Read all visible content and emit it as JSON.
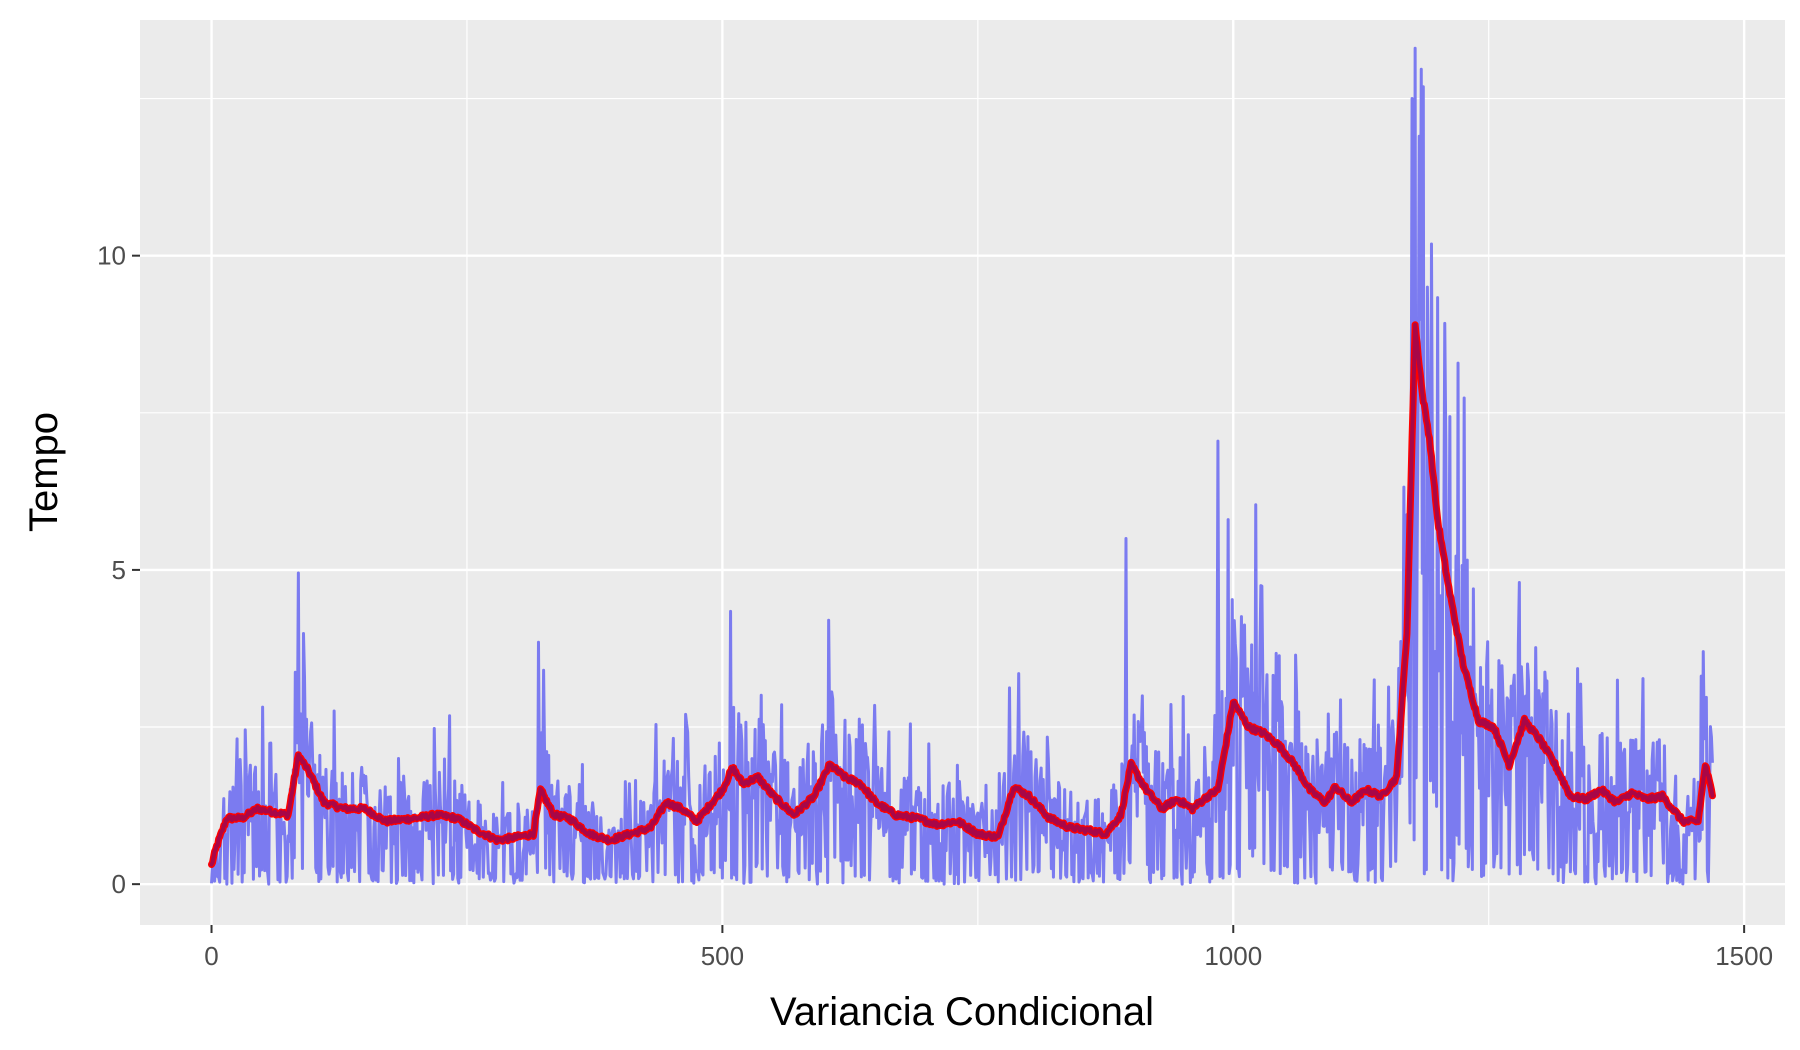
{
  "chart_data": {
    "type": "line",
    "xlabel": "Variancia Condicional",
    "ylabel": "Tempo",
    "xlim": [
      -70,
      1540
    ],
    "ylim": [
      -0.65,
      13.75
    ],
    "x_ticks": [
      {
        "value": 0,
        "label": "0"
      },
      {
        "value": 500,
        "label": "500"
      },
      {
        "value": 1000,
        "label": "1000"
      },
      {
        "value": 1500,
        "label": "1500"
      }
    ],
    "y_ticks": [
      {
        "value": 0,
        "label": "0"
      },
      {
        "value": 5,
        "label": "5"
      },
      {
        "value": 10,
        "label": "10"
      }
    ],
    "grid": true,
    "background": "#ebebeb",
    "n_points": 1470,
    "series": [
      {
        "kind": "raw",
        "color": "#7b7bf0",
        "peaks": [
          [
            85,
            4.95
          ],
          [
            320,
            3.85
          ],
          [
            604,
            4.2
          ],
          [
            790,
            3.35
          ],
          [
            895,
            5.5
          ],
          [
            985,
            7.05
          ],
          [
            995,
            5.8
          ],
          [
            1175,
            12.5
          ],
          [
            1178,
            13.3
          ],
          [
            1182,
            11.9
          ],
          [
            1190,
            9.5
          ],
          [
            1280,
            4.8
          ],
          [
            1460,
            3.7
          ]
        ]
      },
      {
        "kind": "smoothed",
        "color": "#ff0000",
        "overlay_color": "#8b0a60",
        "keypoints": [
          [
            0,
            0.3
          ],
          [
            5,
            0.6
          ],
          [
            15,
            1.05
          ],
          [
            30,
            1.05
          ],
          [
            45,
            1.2
          ],
          [
            60,
            1.15
          ],
          [
            75,
            1.1
          ],
          [
            85,
            2.05
          ],
          [
            95,
            1.8
          ],
          [
            110,
            1.3
          ],
          [
            130,
            1.2
          ],
          [
            150,
            1.2
          ],
          [
            170,
            1.0
          ],
          [
            200,
            1.05
          ],
          [
            220,
            1.1
          ],
          [
            240,
            1.05
          ],
          [
            260,
            0.85
          ],
          [
            280,
            0.7
          ],
          [
            300,
            0.75
          ],
          [
            315,
            0.8
          ],
          [
            322,
            1.5
          ],
          [
            335,
            1.1
          ],
          [
            350,
            1.05
          ],
          [
            370,
            0.8
          ],
          [
            390,
            0.7
          ],
          [
            410,
            0.8
          ],
          [
            430,
            0.9
          ],
          [
            445,
            1.3
          ],
          [
            460,
            1.2
          ],
          [
            475,
            1.0
          ],
          [
            490,
            1.3
          ],
          [
            500,
            1.5
          ],
          [
            510,
            1.85
          ],
          [
            520,
            1.6
          ],
          [
            535,
            1.7
          ],
          [
            550,
            1.4
          ],
          [
            570,
            1.1
          ],
          [
            590,
            1.4
          ],
          [
            605,
            1.9
          ],
          [
            620,
            1.7
          ],
          [
            635,
            1.6
          ],
          [
            650,
            1.3
          ],
          [
            670,
            1.1
          ],
          [
            690,
            1.05
          ],
          [
            710,
            0.95
          ],
          [
            730,
            1.0
          ],
          [
            750,
            0.8
          ],
          [
            770,
            0.75
          ],
          [
            785,
            1.55
          ],
          [
            800,
            1.4
          ],
          [
            820,
            1.05
          ],
          [
            840,
            0.9
          ],
          [
            860,
            0.85
          ],
          [
            875,
            0.8
          ],
          [
            890,
            1.1
          ],
          [
            900,
            1.9
          ],
          [
            915,
            1.5
          ],
          [
            930,
            1.2
          ],
          [
            945,
            1.35
          ],
          [
            960,
            1.2
          ],
          [
            975,
            1.4
          ],
          [
            985,
            1.5
          ],
          [
            1000,
            2.9
          ],
          [
            1015,
            2.5
          ],
          [
            1030,
            2.4
          ],
          [
            1045,
            2.2
          ],
          [
            1060,
            1.9
          ],
          [
            1075,
            1.5
          ],
          [
            1090,
            1.3
          ],
          [
            1100,
            1.55
          ],
          [
            1115,
            1.3
          ],
          [
            1130,
            1.5
          ],
          [
            1145,
            1.4
          ],
          [
            1160,
            1.7
          ],
          [
            1170,
            4.0
          ],
          [
            1178,
            8.9
          ],
          [
            1185,
            7.8
          ],
          [
            1192,
            7.1
          ],
          [
            1200,
            5.8
          ],
          [
            1210,
            4.8
          ],
          [
            1225,
            3.5
          ],
          [
            1240,
            2.6
          ],
          [
            1255,
            2.5
          ],
          [
            1270,
            1.9
          ],
          [
            1285,
            2.6
          ],
          [
            1300,
            2.3
          ],
          [
            1315,
            1.9
          ],
          [
            1330,
            1.4
          ],
          [
            1345,
            1.35
          ],
          [
            1360,
            1.5
          ],
          [
            1375,
            1.3
          ],
          [
            1390,
            1.45
          ],
          [
            1405,
            1.35
          ],
          [
            1420,
            1.4
          ],
          [
            1440,
            1.0
          ],
          [
            1455,
            1.0
          ],
          [
            1462,
            1.9
          ],
          [
            1470,
            1.35
          ]
        ]
      }
    ]
  }
}
